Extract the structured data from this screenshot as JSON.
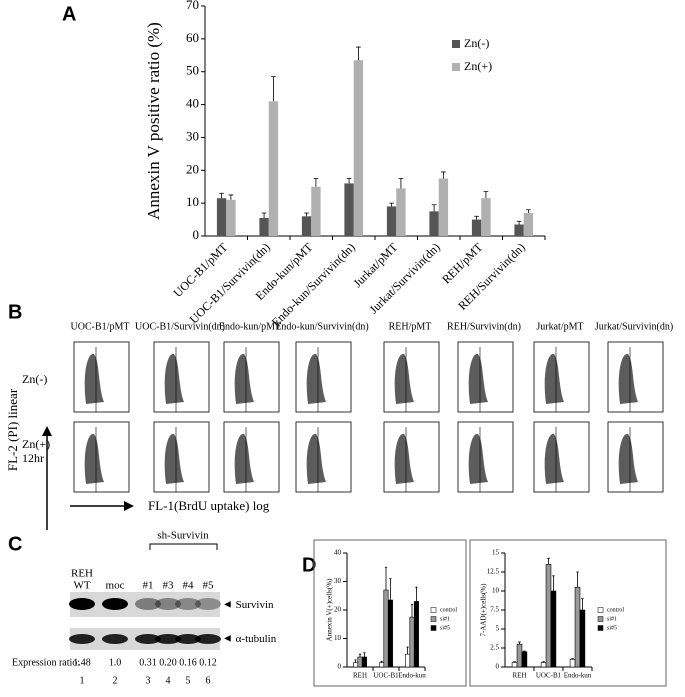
{
  "chart_data": [
    {
      "type": "bar",
      "panel": "A",
      "ylabel": "Annexin V positive ratio (%)",
      "categories": [
        "UOC-B1/pMT",
        "UOC-B1/Survivin(dn)",
        "Endo-kun/pMT",
        "Endo-kun/Survivin(dn)",
        "Jurkat/pMT",
        "Jurkat/Survivin(dn)",
        "REH/pMT",
        "REH/Survivin(dn)"
      ],
      "series": [
        {
          "name": "Zn(-)",
          "color": "#555555",
          "values": [
            11.5,
            5.5,
            6,
            16,
            9,
            7.5,
            5,
            3.5
          ],
          "errors": [
            1.5,
            1.5,
            1,
            1.5,
            1,
            2,
            1,
            1
          ]
        },
        {
          "name": "Zn(+)",
          "color": "#b0b0b0",
          "values": [
            11,
            41,
            15,
            53.5,
            14.5,
            17.5,
            11.5,
            7
          ],
          "errors": [
            1.5,
            7.5,
            2.5,
            4,
            3,
            2,
            2,
            1
          ]
        }
      ],
      "ylim": [
        0,
        70
      ],
      "yticks": [
        0,
        10,
        20,
        30,
        40,
        50,
        60,
        70
      ]
    },
    {
      "type": "bar",
      "panel": "D",
      "ylabel": "Annexin V(+)cells(%)",
      "categories": [
        "REH",
        "UOC-B1",
        "Endo-kun"
      ],
      "series": [
        {
          "name": "control",
          "color": "#ffffff",
          "values": [
            1.5,
            1.5,
            4.5
          ],
          "errors": [
            1,
            0.5,
            2.5
          ]
        },
        {
          "name": "si#1",
          "color": "#999999",
          "values": [
            3.5,
            27,
            17.5
          ],
          "errors": [
            1,
            8,
            4.5
          ]
        },
        {
          "name": "si#5",
          "color": "#000000",
          "values": [
            3.5,
            23.5,
            23
          ],
          "errors": [
            1.5,
            7.5,
            5
          ]
        }
      ],
      "ylim": [
        0,
        40
      ],
      "yticks": [
        0,
        10,
        20,
        30,
        40
      ]
    },
    {
      "type": "bar",
      "ylabel": "7-AAD(+)cells(%)",
      "categories": [
        "REH",
        "UOC-B1",
        "Endo-kun"
      ],
      "series": [
        {
          "name": "control",
          "color": "#ffffff",
          "values": [
            0.6,
            0.6,
            1
          ],
          "errors": [
            0.1,
            0.1,
            0.1
          ]
        },
        {
          "name": "si#1",
          "color": "#999999",
          "values": [
            3,
            13.5,
            10.5
          ],
          "errors": [
            0.3,
            0.8,
            2
          ]
        },
        {
          "name": "si#5",
          "color": "#000000",
          "values": [
            2,
            10,
            7.5
          ],
          "errors": [
            0.1,
            2,
            1.5
          ]
        }
      ],
      "ylim": [
        0,
        15
      ],
      "yticks": [
        0,
        2.5,
        5,
        7.5,
        10,
        12.5,
        15
      ]
    }
  ],
  "panel_b": {
    "label": "B",
    "columns": [
      "UOC-B1/pMT",
      "UOC-B1/Survivin(dn)",
      "Endo-kun/pMT",
      "Endo-kun/Survivin(dn)",
      "REH/pMT",
      "REH/Survivin(dn)",
      "Jurkat/pMT",
      "Jurkat/Survivin(dn)"
    ],
    "rows": [
      "Zn(-)",
      "Zn(+)"
    ],
    "row2_note": "12hr",
    "y_axis": "FL-2 (PI) linear",
    "x_axis": "FL-1(BrdU uptake) log"
  },
  "panel_c": {
    "label": "C",
    "group": "sh-Survivin",
    "lanes": [
      "REH",
      "moc",
      "#1",
      "#3",
      "#4",
      "#5"
    ],
    "lane1_note": "WT",
    "bands": [
      "Survivin",
      "α-tubulin"
    ],
    "ratio_label": "Expression ratio:",
    "ratios": [
      "1.48",
      "1.0",
      "0.31",
      "0.20",
      "0.16",
      "0.12"
    ],
    "lane_numbers": [
      "1",
      "2",
      "3",
      "4",
      "5",
      "6"
    ]
  }
}
